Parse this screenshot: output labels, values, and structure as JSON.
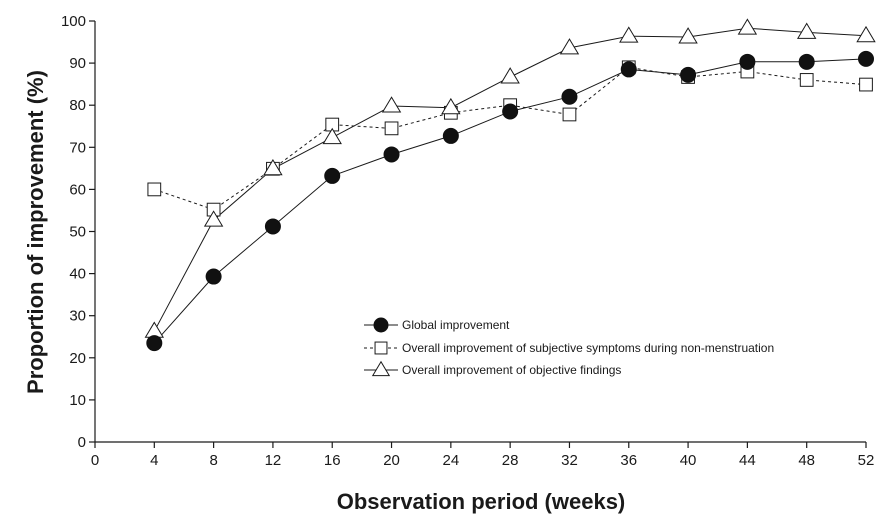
{
  "chart_data": {
    "type": "line",
    "xlabel": "Observation period (weeks)",
    "ylabel": "Proportion of improvement (%)",
    "xlim": [
      0,
      52
    ],
    "ylim": [
      0,
      100
    ],
    "x_ticks": [
      0,
      4,
      8,
      12,
      16,
      20,
      24,
      28,
      32,
      36,
      40,
      44,
      48,
      52
    ],
    "y_ticks": [
      0,
      10,
      20,
      30,
      40,
      50,
      60,
      70,
      80,
      90,
      100
    ],
    "grid": false,
    "legend_position": "center-right",
    "series": [
      {
        "name": "Global improvement",
        "marker": "filled-circle",
        "line_style": "solid",
        "x": [
          4,
          8,
          12,
          16,
          20,
          24,
          28,
          32,
          36,
          40,
          44,
          48,
          52
        ],
        "y": [
          23.5,
          39.3,
          51.2,
          63.2,
          68.3,
          72.7,
          78.5,
          82.0,
          88.5,
          87.2,
          90.3,
          90.3,
          91.0
        ]
      },
      {
        "name": "Overall improvement of subjective symptoms during non-menstruation",
        "marker": "open-square",
        "line_style": "dashed",
        "x": [
          4,
          8,
          12,
          16,
          20,
          24,
          28,
          32,
          36,
          40,
          44,
          48,
          52
        ],
        "y": [
          60.0,
          55.2,
          64.9,
          75.4,
          74.5,
          78.2,
          80.0,
          77.8,
          89.0,
          86.7,
          88.0,
          86.0,
          84.9
        ]
      },
      {
        "name": "Overall improvement of objective findings",
        "marker": "open-triangle",
        "line_style": "solid",
        "x": [
          4,
          8,
          12,
          16,
          20,
          24,
          28,
          32,
          36,
          40,
          44,
          48,
          52
        ],
        "y": [
          26.3,
          52.7,
          64.9,
          72.3,
          79.8,
          79.4,
          86.7,
          93.6,
          96.4,
          96.2,
          98.3,
          97.3,
          96.5
        ]
      }
    ]
  }
}
